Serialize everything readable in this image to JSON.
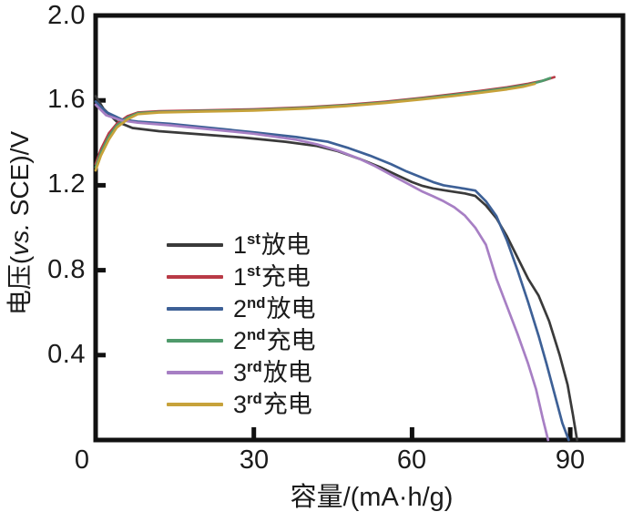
{
  "figure": {
    "y_axis": {
      "title_prefix": "电压(",
      "title_italic": "vs.",
      "title_suffix": " SCE)/V",
      "tick_labels": [
        "2.0",
        "1.6",
        "1.2",
        "0.8",
        "0.4"
      ]
    },
    "x_axis": {
      "title": "容量/(mA·h/g)",
      "tick_labels": [
        "0",
        "30",
        "60",
        "90"
      ]
    }
  },
  "legend": [
    {
      "num": "1",
      "ord": "st",
      "label": "放电",
      "color": "#3a3a3a"
    },
    {
      "num": "1",
      "ord": "st",
      "label": "充电",
      "color": "#b93a46"
    },
    {
      "num": "2",
      "ord": "nd",
      "label": "放电",
      "color": "#3d6096"
    },
    {
      "num": "2",
      "ord": "nd",
      "label": "充电",
      "color": "#4f9a6b"
    },
    {
      "num": "3",
      "ord": "rd",
      "label": "放电",
      "color": "#a77fc4"
    },
    {
      "num": "3",
      "ord": "rd",
      "label": "充电",
      "color": "#c7a23b"
    }
  ],
  "chart_data": {
    "type": "line",
    "title": "",
    "xlabel": "容量/(mA·h/g)",
    "ylabel": "电压(vs. SCE)/V",
    "xlim": [
      0,
      100
    ],
    "ylim": [
      0,
      2.0
    ],
    "x_ticks": [
      0,
      30,
      60,
      90
    ],
    "y_ticks": [
      0.4,
      0.8,
      1.2,
      1.6,
      2.0
    ],
    "grid": false,
    "legend_position": "inside-left-lower",
    "units": {
      "x": "mA·h/g",
      "y": "V vs. SCE"
    },
    "series": [
      {
        "name": "1st放电",
        "kind": "discharge",
        "cycle": 1,
        "color": "#3a3a3a",
        "points": [
          [
            0,
            1.62
          ],
          [
            1.5,
            1.56
          ],
          [
            4,
            1.5
          ],
          [
            7,
            1.47
          ],
          [
            12,
            1.455
          ],
          [
            20,
            1.44
          ],
          [
            28,
            1.425
          ],
          [
            36,
            1.405
          ],
          [
            42,
            1.385
          ],
          [
            46,
            1.36
          ],
          [
            50,
            1.325
          ],
          [
            54,
            1.285
          ],
          [
            57,
            1.25
          ],
          [
            60,
            1.215
          ],
          [
            62,
            1.197
          ],
          [
            64,
            1.185
          ],
          [
            67,
            1.173
          ],
          [
            70,
            1.162
          ],
          [
            72,
            1.15
          ],
          [
            74,
            1.105
          ],
          [
            76,
            1.045
          ],
          [
            78,
            0.96
          ],
          [
            80,
            0.86
          ],
          [
            82,
            0.76
          ],
          [
            84,
            0.68
          ],
          [
            86,
            0.56
          ],
          [
            88,
            0.4
          ],
          [
            89.5,
            0.26
          ],
          [
            90.5,
            0.12
          ],
          [
            91.3,
            0
          ]
        ]
      },
      {
        "name": "1st充电",
        "kind": "charge",
        "cycle": 1,
        "color": "#b93a46",
        "points": [
          [
            0,
            1.3
          ],
          [
            1,
            1.37
          ],
          [
            2.5,
            1.445
          ],
          [
            4,
            1.49
          ],
          [
            6,
            1.525
          ],
          [
            8,
            1.543
          ],
          [
            12,
            1.549
          ],
          [
            20,
            1.553
          ],
          [
            30,
            1.558
          ],
          [
            40,
            1.568
          ],
          [
            48,
            1.58
          ],
          [
            55,
            1.594
          ],
          [
            62,
            1.612
          ],
          [
            68,
            1.63
          ],
          [
            73,
            1.645
          ],
          [
            78,
            1.662
          ],
          [
            82,
            1.678
          ],
          [
            85,
            1.694
          ],
          [
            87,
            1.71
          ]
        ]
      },
      {
        "name": "2nd放电",
        "kind": "discharge",
        "cycle": 2,
        "color": "#3d6096",
        "points": [
          [
            0,
            1.595
          ],
          [
            2,
            1.545
          ],
          [
            5,
            1.51
          ],
          [
            8,
            1.5
          ],
          [
            14,
            1.49
          ],
          [
            22,
            1.47
          ],
          [
            30,
            1.45
          ],
          [
            38,
            1.428
          ],
          [
            44,
            1.405
          ],
          [
            48,
            1.375
          ],
          [
            52,
            1.34
          ],
          [
            56,
            1.3
          ],
          [
            59,
            1.265
          ],
          [
            62,
            1.235
          ],
          [
            64,
            1.215
          ],
          [
            66,
            1.2
          ],
          [
            69,
            1.188
          ],
          [
            72,
            1.175
          ],
          [
            74,
            1.125
          ],
          [
            76,
            1.055
          ],
          [
            78,
            0.94
          ],
          [
            80,
            0.8
          ],
          [
            82,
            0.65
          ],
          [
            84,
            0.49
          ],
          [
            85.5,
            0.36
          ],
          [
            87,
            0.22
          ],
          [
            88.5,
            0.08
          ],
          [
            89.7,
            0
          ]
        ]
      },
      {
        "name": "2nd充电",
        "kind": "charge",
        "cycle": 2,
        "color": "#4f9a6b",
        "points": [
          [
            0,
            1.285
          ],
          [
            1,
            1.355
          ],
          [
            2.5,
            1.43
          ],
          [
            4,
            1.482
          ],
          [
            6,
            1.518
          ],
          [
            8,
            1.54
          ],
          [
            12,
            1.546
          ],
          [
            20,
            1.55
          ],
          [
            30,
            1.555
          ],
          [
            40,
            1.565
          ],
          [
            48,
            1.577
          ],
          [
            55,
            1.591
          ],
          [
            62,
            1.609
          ],
          [
            68,
            1.626
          ],
          [
            73,
            1.641
          ],
          [
            78,
            1.658
          ],
          [
            82,
            1.674
          ],
          [
            84.5,
            1.69
          ],
          [
            86.2,
            1.705
          ]
        ]
      },
      {
        "name": "3rd放电",
        "kind": "discharge",
        "cycle": 3,
        "color": "#a77fc4",
        "points": [
          [
            0,
            1.58
          ],
          [
            2,
            1.53
          ],
          [
            5,
            1.505
          ],
          [
            8,
            1.495
          ],
          [
            14,
            1.483
          ],
          [
            22,
            1.463
          ],
          [
            30,
            1.443
          ],
          [
            38,
            1.415
          ],
          [
            42,
            1.393
          ],
          [
            46,
            1.363
          ],
          [
            50,
            1.325
          ],
          [
            53,
            1.29
          ],
          [
            56,
            1.25
          ],
          [
            59,
            1.21
          ],
          [
            62,
            1.17
          ],
          [
            64,
            1.148
          ],
          [
            66,
            1.125
          ],
          [
            68,
            1.097
          ],
          [
            70,
            1.058
          ],
          [
            72,
            1.0
          ],
          [
            74,
            0.92
          ],
          [
            76,
            0.76
          ],
          [
            78,
            0.63
          ],
          [
            80,
            0.5
          ],
          [
            82,
            0.36
          ],
          [
            83.5,
            0.24
          ],
          [
            84.8,
            0.1
          ],
          [
            85.8,
            0
          ]
        ]
      },
      {
        "name": "3rd充电",
        "kind": "charge",
        "cycle": 3,
        "color": "#c7a23b",
        "points": [
          [
            0,
            1.27
          ],
          [
            1,
            1.34
          ],
          [
            2.5,
            1.415
          ],
          [
            4,
            1.472
          ],
          [
            6,
            1.51
          ],
          [
            8,
            1.535
          ],
          [
            12,
            1.543
          ],
          [
            20,
            1.547
          ],
          [
            30,
            1.552
          ],
          [
            40,
            1.562
          ],
          [
            48,
            1.574
          ],
          [
            55,
            1.588
          ],
          [
            62,
            1.605
          ],
          [
            68,
            1.621
          ],
          [
            73,
            1.636
          ],
          [
            78,
            1.652
          ],
          [
            81,
            1.664
          ],
          [
            83.3,
            1.678
          ]
        ]
      }
    ]
  }
}
